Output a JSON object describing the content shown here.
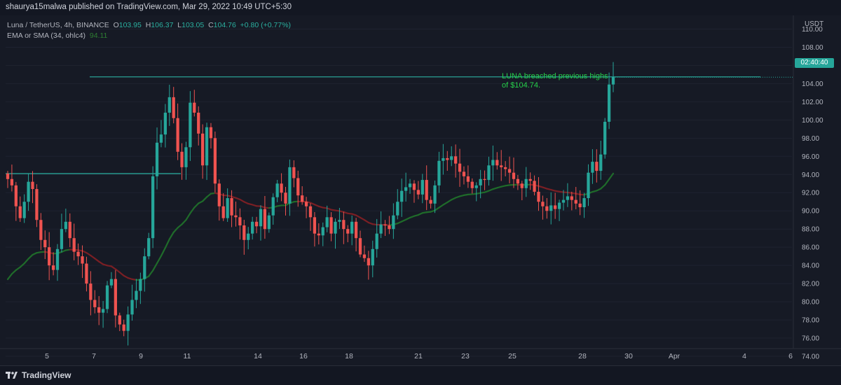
{
  "publisher": "shaurya15malwa published on TradingView.com, Mar 29, 2022 10:49 UTC+5:30",
  "legend": {
    "symbol": "Luna / TetherUS, 4h, BINANCE",
    "o_label": "O",
    "o": "103.95",
    "h_label": "H",
    "h": "106.37",
    "l_label": "L",
    "l": "103.05",
    "c_label": "C",
    "c": "104.76",
    "change": "+0.80 (+0.77%)",
    "indicator": "EMA or SMA (34, ohlc4)",
    "indicator_value": "94.11"
  },
  "currency_label": "USDT",
  "price_badge": "02:40:40",
  "annotation": "LUNA breached previous highs of $104.74.",
  "footer_brand": "TradingView",
  "colors": {
    "up": "#26a69a",
    "down": "#ef5350",
    "ema_up": "#1f6b2a",
    "ema_down": "#7a1f24",
    "level_line": "#2bb0a0",
    "annotation": "#26d04a"
  },
  "chart_data": {
    "type": "candlestick",
    "title": "Luna / TetherUS, 4h, BINANCE",
    "y_ticks": [
      74,
      76,
      78,
      80,
      82,
      84,
      86,
      88,
      90,
      92,
      94,
      96,
      98,
      100,
      102,
      104,
      106,
      108,
      110
    ],
    "x_ticks": [
      "5",
      "7",
      "9",
      "11",
      "14",
      "16",
      "18",
      "21",
      "23",
      "25",
      "28",
      "30",
      "Apr",
      "4",
      "6"
    ],
    "horizontal_levels": [
      104.74,
      94.1
    ],
    "closes": [
      93.5,
      92.8,
      90.5,
      89.2,
      91.0,
      93.2,
      92.4,
      89.0,
      86.8,
      86.0,
      84.0,
      83.5,
      85.8,
      88.0,
      88.8,
      87.0,
      85.5,
      85.0,
      84.2,
      82.0,
      80.2,
      79.4,
      78.8,
      79.2,
      81.8,
      82.5,
      78.5,
      77.5,
      76.8,
      78.6,
      80.2,
      81.2,
      82.5,
      85.0,
      87.0,
      93.8,
      97.5,
      98.4,
      100.8,
      102.5,
      100.2,
      96.5,
      94.8,
      97.0,
      101.9,
      100.8,
      98.5,
      95.0,
      99.2,
      98.0,
      93.0,
      90.5,
      89.2,
      91.4,
      89.5,
      89.3,
      88.4,
      86.8,
      87.5,
      88.8,
      88.3,
      90.2,
      88.0,
      89.5,
      91.5,
      93.0,
      92.0,
      90.8,
      94.8,
      93.6,
      91.7,
      91.0,
      90.5,
      89.3,
      87.5,
      87.3,
      88.2,
      89.3,
      87.5,
      88.8,
      89.0,
      88.0,
      87.5,
      88.8,
      87.0,
      85.2,
      84.8,
      84.0,
      85.8,
      87.5,
      88.5,
      88.4,
      88.0,
      89.5,
      91.0,
      92.2,
      92.6,
      93.0,
      92.3,
      91.8,
      93.4,
      91.2,
      90.8,
      92.8,
      95.5,
      95.8,
      95.6,
      96.0,
      95.2,
      94.3,
      93.8,
      93.2,
      92.5,
      92.8,
      93.5,
      93.4,
      95.0,
      95.6,
      95.0,
      94.8,
      94.6,
      94.2,
      93.5,
      93.0,
      92.5,
      93.5,
      93.3,
      92.1,
      91.0,
      90.5,
      90.0,
      90.6,
      90.2,
      90.9,
      91.2,
      91.6,
      91.2,
      90.8,
      90.4,
      91.4,
      94.2,
      95.4,
      94.4,
      96.2,
      99.8,
      103.9,
      104.76
    ],
    "ema_34_end": 94.11,
    "ylim": [
      73,
      111.5
    ]
  }
}
